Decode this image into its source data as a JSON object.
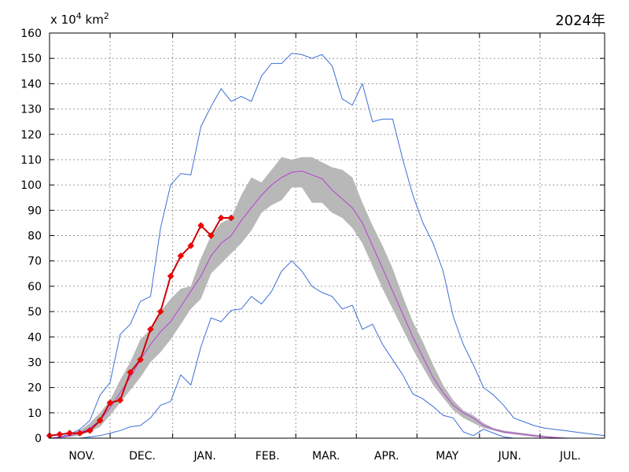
{
  "header": {
    "unit_prefix": "x 10",
    "unit_exp1": "4",
    "unit_mid": "km",
    "unit_exp2": "2",
    "year": "2024年"
  },
  "chart_data": {
    "type": "line",
    "title": "2024年",
    "ylabel": "x 10^4 km^2",
    "ylim": [
      0,
      160
    ],
    "yticks": [
      0,
      10,
      20,
      30,
      40,
      50,
      60,
      70,
      80,
      90,
      100,
      110,
      120,
      130,
      140,
      150,
      160
    ],
    "xlim": [
      0,
      275
    ],
    "xticks": [
      {
        "label": "NOV.",
        "at": 16
      },
      {
        "label": "DEC.",
        "at": 46
      },
      {
        "label": "JAN.",
        "at": 77
      },
      {
        "label": "FEB.",
        "at": 108
      },
      {
        "label": "MAR.",
        "at": 137
      },
      {
        "label": "APR.",
        "at": 167
      },
      {
        "label": "MAY",
        "at": 197
      },
      {
        "label": "JUN.",
        "at": 228
      },
      {
        "label": "JUL.",
        "at": 258
      }
    ],
    "grid": true,
    "colors": {
      "max_line": "#3b6fd6",
      "min_line": "#3b6fd6",
      "mean_line": "#b93fd6",
      "band_fill": "#b8b8b8",
      "current": "#ff0000",
      "current_line": "#cc0000"
    },
    "max_series": {
      "x": [
        0,
        5,
        10,
        15,
        20,
        25,
        30,
        35,
        40,
        45,
        50,
        55,
        60,
        65,
        70,
        75,
        80,
        85,
        90,
        95,
        100,
        105,
        110,
        115,
        120,
        125,
        130,
        135,
        140,
        145,
        150,
        155,
        160,
        165,
        170,
        175,
        180,
        185,
        190,
        195,
        200,
        205,
        210,
        215,
        220,
        225,
        230,
        235,
        240,
        245,
        250,
        255,
        260,
        265,
        270,
        275
      ],
      "values": [
        0,
        0.5,
        1.5,
        3.5,
        7,
        17,
        22,
        41,
        45,
        54,
        56,
        83,
        100,
        104.5,
        104,
        123,
        131,
        138,
        133,
        135,
        133,
        143,
        148,
        148,
        152,
        151.5,
        150,
        151.5,
        147,
        134,
        131.5,
        140,
        125,
        126,
        126,
        110,
        96,
        85,
        77,
        66,
        48,
        37,
        29,
        20,
        17,
        13,
        8,
        6.5,
        5,
        4,
        3.5,
        3,
        2.5,
        2,
        1.5,
        1
      ]
    },
    "min_series": {
      "x": [
        0,
        5,
        10,
        15,
        20,
        25,
        30,
        35,
        40,
        45,
        50,
        55,
        60,
        65,
        70,
        75,
        80,
        85,
        90,
        95,
        100,
        105,
        110,
        115,
        120,
        125,
        130,
        135,
        140,
        145,
        150,
        155,
        160,
        165,
        170,
        175,
        180,
        185,
        190,
        195,
        200,
        205,
        210,
        215,
        220,
        225,
        230,
        235,
        240,
        245,
        250,
        255,
        260,
        265,
        270,
        275
      ],
      "values": [
        0,
        0,
        0,
        0,
        0.5,
        1,
        2,
        3,
        4.5,
        5,
        8,
        13,
        14.5,
        25,
        21,
        36,
        47.5,
        46,
        50.5,
        51,
        56,
        53,
        58,
        66,
        70,
        66,
        60,
        57.5,
        56,
        51,
        52.5,
        43,
        45,
        37,
        31,
        25,
        17.5,
        15.5,
        12.5,
        9,
        8,
        2.5,
        1,
        3.5,
        2,
        0.5,
        0,
        0,
        0,
        0,
        0,
        0,
        0,
        0,
        0,
        0
      ]
    },
    "mean_series": {
      "x": [
        0,
        5,
        10,
        15,
        20,
        25,
        30,
        35,
        40,
        45,
        50,
        55,
        60,
        65,
        70,
        75,
        80,
        85,
        90,
        95,
        100,
        105,
        110,
        115,
        120,
        125,
        130,
        135,
        140,
        145,
        150,
        155,
        160,
        165,
        170,
        175,
        180,
        185,
        190,
        195,
        200,
        205,
        210,
        215,
        220,
        225,
        230,
        235,
        240,
        245,
        250,
        255,
        260,
        265,
        270,
        275
      ],
      "values": [
        0,
        0.3,
        1,
        2,
        4,
        7,
        12,
        18,
        24,
        31,
        37,
        42,
        46,
        52,
        58,
        64,
        72,
        77,
        80,
        86,
        91,
        96,
        100,
        103,
        105,
        105.5,
        104,
        102.5,
        98,
        94.5,
        91,
        85,
        76,
        67,
        58,
        49,
        40,
        32,
        24,
        18,
        13,
        10,
        8,
        5,
        3.5,
        2.5,
        2,
        1.5,
        1,
        0.5,
        0.3,
        0,
        0,
        0,
        0,
        0
      ]
    },
    "band": {
      "x": [
        0,
        5,
        10,
        15,
        20,
        25,
        30,
        35,
        40,
        45,
        50,
        55,
        60,
        65,
        70,
        75,
        80,
        85,
        90,
        95,
        100,
        105,
        110,
        115,
        120,
        125,
        130,
        135,
        140,
        145,
        150,
        155,
        160,
        165,
        170,
        175,
        180,
        185,
        190,
        195,
        200,
        205,
        210,
        215,
        220,
        225,
        230,
        235,
        240,
        245,
        250,
        255,
        260,
        265,
        270,
        275
      ],
      "upper": [
        0,
        0.5,
        1.5,
        3,
        6,
        10,
        15,
        23,
        30,
        39,
        43,
        50,
        55,
        59,
        60,
        71,
        80,
        85,
        87,
        96,
        103,
        101,
        106,
        111,
        110,
        111,
        111,
        109,
        107,
        106,
        103,
        93,
        84,
        76,
        67,
        56,
        46,
        38,
        29,
        21,
        15,
        11,
        9,
        6,
        4,
        3,
        2.5,
        2,
        1.5,
        1,
        0.5,
        0.3,
        0,
        0,
        0,
        0
      ],
      "lower": [
        0,
        0,
        0.5,
        1,
        2.5,
        4.5,
        9,
        14,
        19,
        24,
        30,
        34,
        39,
        45,
        51,
        55,
        65,
        69,
        73,
        77,
        82,
        89,
        92,
        94,
        99,
        99,
        93,
        93,
        89,
        87,
        83,
        77,
        68,
        59,
        51,
        43,
        35,
        28,
        21,
        16,
        11,
        8,
        6,
        4,
        3,
        2,
        1.5,
        1,
        0.5,
        0.3,
        0,
        0,
        0,
        0,
        0,
        0
      ]
    },
    "current_series": {
      "name": "2024年",
      "x": [
        0,
        5,
        10,
        15,
        20,
        25,
        30,
        35,
        40,
        45,
        50,
        55,
        60,
        65,
        70,
        75,
        80,
        85,
        90
      ],
      "values": [
        1,
        1.5,
        2,
        2,
        3,
        7,
        14,
        15,
        26,
        31,
        43,
        50,
        64,
        72,
        76,
        84,
        80,
        87,
        87
      ]
    }
  }
}
